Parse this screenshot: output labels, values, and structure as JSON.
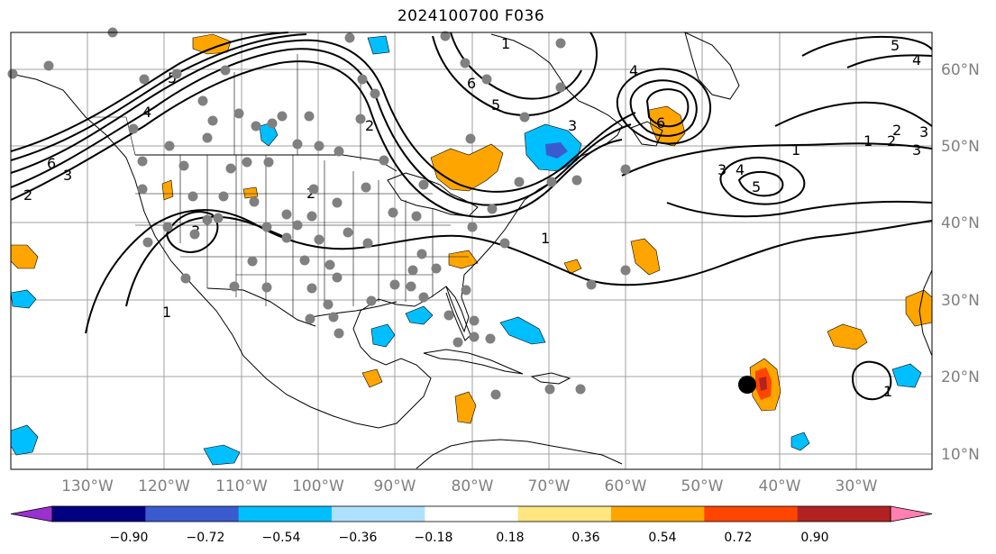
{
  "title": "2024100700 F036",
  "map": {
    "lon_labels": [
      "130°W",
      "120°W",
      "110°W",
      "100°W",
      "90°W",
      "80°W",
      "70°W",
      "60°W",
      "50°W",
      "40°W",
      "30°W"
    ],
    "lat_labels": [
      "60°N",
      "50°N",
      "40°N",
      "30°N",
      "20°N",
      "10°N"
    ],
    "grid": true,
    "contour_labels": [
      "6",
      "5",
      "4",
      "3",
      "2",
      "1",
      "6",
      "5",
      "4",
      "5",
      "4",
      "3",
      "2",
      "1",
      "6",
      "3",
      "4",
      "5",
      "1",
      "2",
      "3",
      "1",
      "2",
      "3",
      "1",
      "1",
      "3",
      "2"
    ],
    "storm_marker": {
      "lon": -44.5,
      "lat": 19.2
    }
  },
  "colorbar": {
    "tick_labels": [
      "−0.90",
      "−0.72",
      "−0.54",
      "−0.36",
      "−0.18",
      "0.18",
      "0.36",
      "0.54",
      "0.72",
      "0.90"
    ],
    "colors": [
      "#9b30d0",
      "#000080",
      "#3a5bd0",
      "#00bfff",
      "#b0e0ff",
      "#ffffff",
      "#ffe680",
      "#ffa500",
      "#ff4500",
      "#b22222",
      "#ff80b0"
    ]
  }
}
